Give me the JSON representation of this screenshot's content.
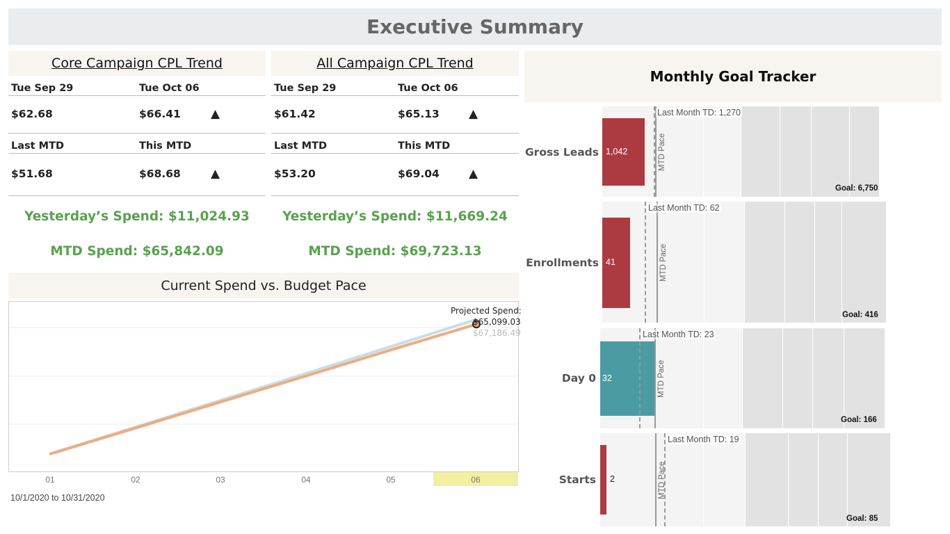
{
  "header": {
    "title": "Executive Summary"
  },
  "core": {
    "title": "Core Campaign CPL Trend",
    "prev_day_label": "Tue Sep 29",
    "curr_day_label": "Tue Oct 06",
    "prev_day_value": "$62.68",
    "curr_day_value": "$66.41",
    "day_arrow": "▲",
    "last_mtd_label": "Last MTD",
    "this_mtd_label": "This MTD",
    "last_mtd_value": "$51.68",
    "this_mtd_value": "$68.68",
    "mtd_arrow": "▲",
    "yesterday_spend": "Yesterday’s Spend: $11,024.93",
    "mtd_spend": "MTD Spend: $65,842.09"
  },
  "all": {
    "title": "All Campaign CPL Trend",
    "prev_day_label": "Tue Sep 29",
    "curr_day_label": "Tue Oct 06",
    "prev_day_value": "$61.42",
    "curr_day_value": "$65.13",
    "day_arrow": "▲",
    "last_mtd_label": "Last MTD",
    "this_mtd_label": "This MTD",
    "last_mtd_value": "$53.20",
    "this_mtd_value": "$69.04",
    "mtd_arrow": "▲",
    "yesterday_spend": "Yesterday’s Spend: $11,669.24",
    "mtd_spend": "MTD Spend: $69,723.13"
  },
  "spend_chart": {
    "title": "Current Spend vs. Budget Pace",
    "projected_label": "Projected Spend:",
    "projected_value": "$65,099.03",
    "budget_value": "$67,186.49",
    "date_range": "10/1/2020 to 10/31/2020",
    "highlight_tick": "06"
  },
  "chart_data": {
    "type": "line",
    "title": "Current Spend vs. Budget Pace",
    "x": [
      "01",
      "02",
      "03",
      "04",
      "05",
      "06"
    ],
    "series": [
      {
        "values": [
          7800,
          19300,
          30800,
          42300,
          53800,
          65099.03
        ]
      },
      {
        "values": [
          7900,
          19700,
          31500,
          43400,
          55300,
          67186.49
        ]
      }
    ],
    "colors": [
      "#efab80",
      "#c8dde3"
    ]
  },
  "goal_tracker": {
    "title": "Monthly Goal Tracker",
    "pace_label": "MTD Pace",
    "metrics": [
      {
        "label": "Gross Leads",
        "value": "1,042",
        "last_month": "Last Month TD: 1,270",
        "goal": "Goal: 6,750",
        "color": "#ad3a40"
      },
      {
        "label": "Enrollments",
        "value": "41",
        "last_month": "Last Month TD: 62",
        "goal": "Goal: 416",
        "color": "#ad3a40"
      },
      {
        "label": "Day 0",
        "value": "32",
        "last_month": "Last Month TD: 23",
        "goal": "Goal: 166",
        "color": "#4a9ca2"
      },
      {
        "label": "Starts",
        "value": "2",
        "last_month": "Last Month TD: 19",
        "goal": "Goal: 85",
        "color": "#ad3a40"
      }
    ]
  }
}
